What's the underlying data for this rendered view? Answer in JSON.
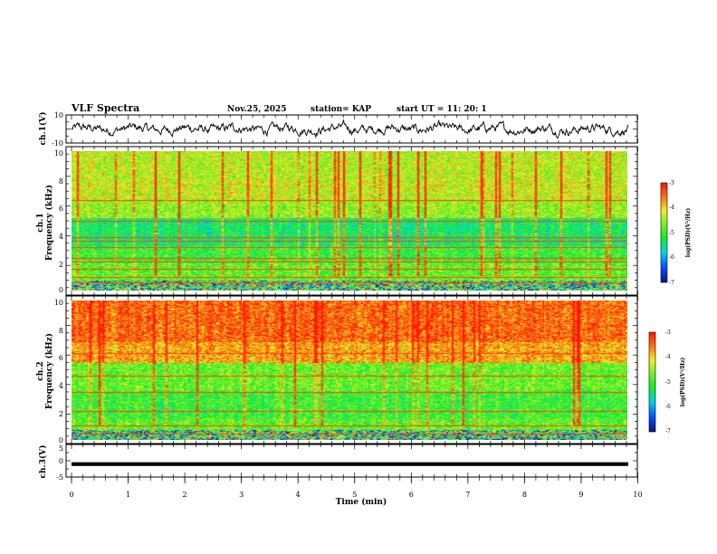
{
  "header": {
    "title": "VLF Spectra",
    "date": "Nov.25, 2025",
    "station": "station= KAP",
    "start": "start  UT =   11: 20: 1"
  },
  "colors": {
    "low": "#0a1a8c",
    "mid_low": "#00d8e8",
    "mid": "#22ee22",
    "mid_high": "#f0ee22",
    "high": "#ff1a00",
    "trace": "#000000"
  },
  "chart_data": [
    {
      "id": "ch1-voltage",
      "type": "line",
      "ylabel": "ch.1(V)",
      "ylim": [
        -10,
        10
      ],
      "ytick_labels": [
        "10",
        "-10"
      ],
      "xlim": [
        0,
        10
      ],
      "note": "noisy waveform envelope, values roughly between -6 and +6 V"
    },
    {
      "id": "ch1-spectrogram",
      "type": "heatmap",
      "ylabel": "ch.1\nFrequency (kHz)",
      "ylabel_lines": [
        "ch.1",
        "Frequency (kHz)"
      ],
      "ylim": [
        0,
        10
      ],
      "ytick_labels": [
        "0",
        "2",
        "4",
        "6",
        "8",
        "10"
      ],
      "xlim": [
        0,
        9.83
      ],
      "hum_lines_khz": [
        0.5,
        0.9,
        1.5,
        2.0,
        2.3,
        3.1,
        3.5,
        3.8,
        5.0,
        6.5
      ],
      "dominant_band": "green 2-5 kHz, yellow/red above 6 kHz",
      "colorbar": {
        "label": "log(PSD)(V²/Hz)",
        "range": [
          -7,
          -3
        ],
        "tick_labels": [
          "-3",
          "-4",
          "-5",
          "-6",
          "-7"
        ]
      }
    },
    {
      "id": "ch2-spectrogram",
      "type": "heatmap",
      "ylabel": "ch.2\nFrequency (kHz)",
      "ylabel_lines": [
        "ch.2",
        "Frequency (kHz)"
      ],
      "ylim": [
        0,
        10
      ],
      "ytick_labels": [
        "0",
        "2",
        "4",
        "6",
        "8",
        "10"
      ],
      "xlim": [
        0,
        9.83
      ],
      "hum_lines_khz": [
        0.4,
        1.0,
        2.0,
        3.4,
        4.6,
        6.2
      ],
      "dominant_band": "red 6-10 kHz, green 1-5 kHz",
      "colorbar": {
        "label": "log(PSD)(V²/Hz)",
        "range": [
          -7,
          -3
        ],
        "tick_labels": [
          "-3",
          "-4",
          "-5",
          "-6",
          "-7"
        ]
      }
    },
    {
      "id": "ch3-voltage",
      "type": "line",
      "ylabel": "ch.3(V)",
      "ylim": [
        -5,
        5
      ],
      "ytick_labels": [
        "5",
        "0",
        "-5"
      ],
      "xlim": [
        0,
        10
      ],
      "note": "flat thick band near -1 V"
    }
  ],
  "xaxis": {
    "label": "Time  (min)",
    "range": [
      0,
      10
    ],
    "tick_labels": [
      "0",
      "1",
      "2",
      "3",
      "4",
      "5",
      "6",
      "7",
      "8",
      "9",
      "10"
    ]
  }
}
